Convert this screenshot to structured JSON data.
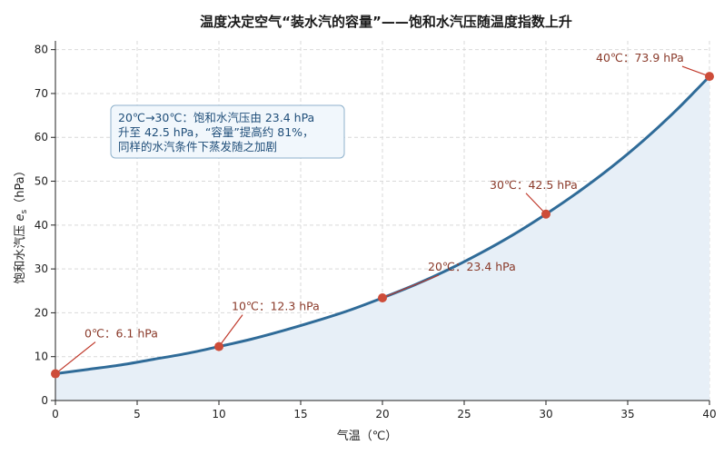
{
  "chart_data": {
    "type": "line",
    "title": "温度决定空气“装水汽的容量”——饱和水汽压随温度指数上升",
    "xlabel": "气温（℃）",
    "ylabel": "饱和水汽压 e_s（hPa）",
    "ylabel_main": "饱和水汽压 ",
    "ylabel_var": "e",
    "ylabel_sub": "s",
    "ylabel_unit": "（hPa）",
    "xlim": [
      0,
      40
    ],
    "ylim": [
      0,
      82
    ],
    "xticks": [
      0,
      5,
      10,
      15,
      20,
      25,
      30,
      35,
      40
    ],
    "yticks": [
      0,
      10,
      20,
      30,
      40,
      50,
      60,
      70,
      80
    ],
    "grid": true,
    "curve_color": "#2f6b98",
    "fill_color": "#e7eff7",
    "point_color": "#cd4c39",
    "series": [
      {
        "x": [
          0,
          2,
          4,
          6,
          8,
          10,
          12,
          14,
          16,
          18,
          20,
          22,
          24,
          26,
          28,
          30,
          32,
          34,
          36,
          38,
          40
        ],
        "values": [
          6.1,
          7.1,
          8.1,
          9.4,
          10.7,
          12.3,
          14.0,
          16.0,
          18.2,
          20.6,
          23.4,
          26.4,
          29.8,
          33.6,
          37.8,
          42.5,
          47.6,
          53.2,
          59.4,
          66.3,
          73.9
        ]
      }
    ],
    "points": [
      {
        "x": 0,
        "y": 6.1,
        "label": "0℃：6.1 hPa"
      },
      {
        "x": 10,
        "y": 12.3,
        "label": "10℃：12.3 hPa"
      },
      {
        "x": 20,
        "y": 23.4,
        "label": "20℃：23.4 hPa"
      },
      {
        "x": 30,
        "y": 42.5,
        "label": "30℃：42.5 hPa"
      },
      {
        "x": 40,
        "y": 73.9,
        "label": "40℃：73.9 hPa"
      }
    ],
    "annotation_box": {
      "lines": [
        "20℃→30℃：饱和水汽压由 23.4 hPa",
        "升至 42.5 hPa，“容量”提高约 81%，",
        "同样的水汽条件下蒸发随之加剧"
      ]
    }
  }
}
